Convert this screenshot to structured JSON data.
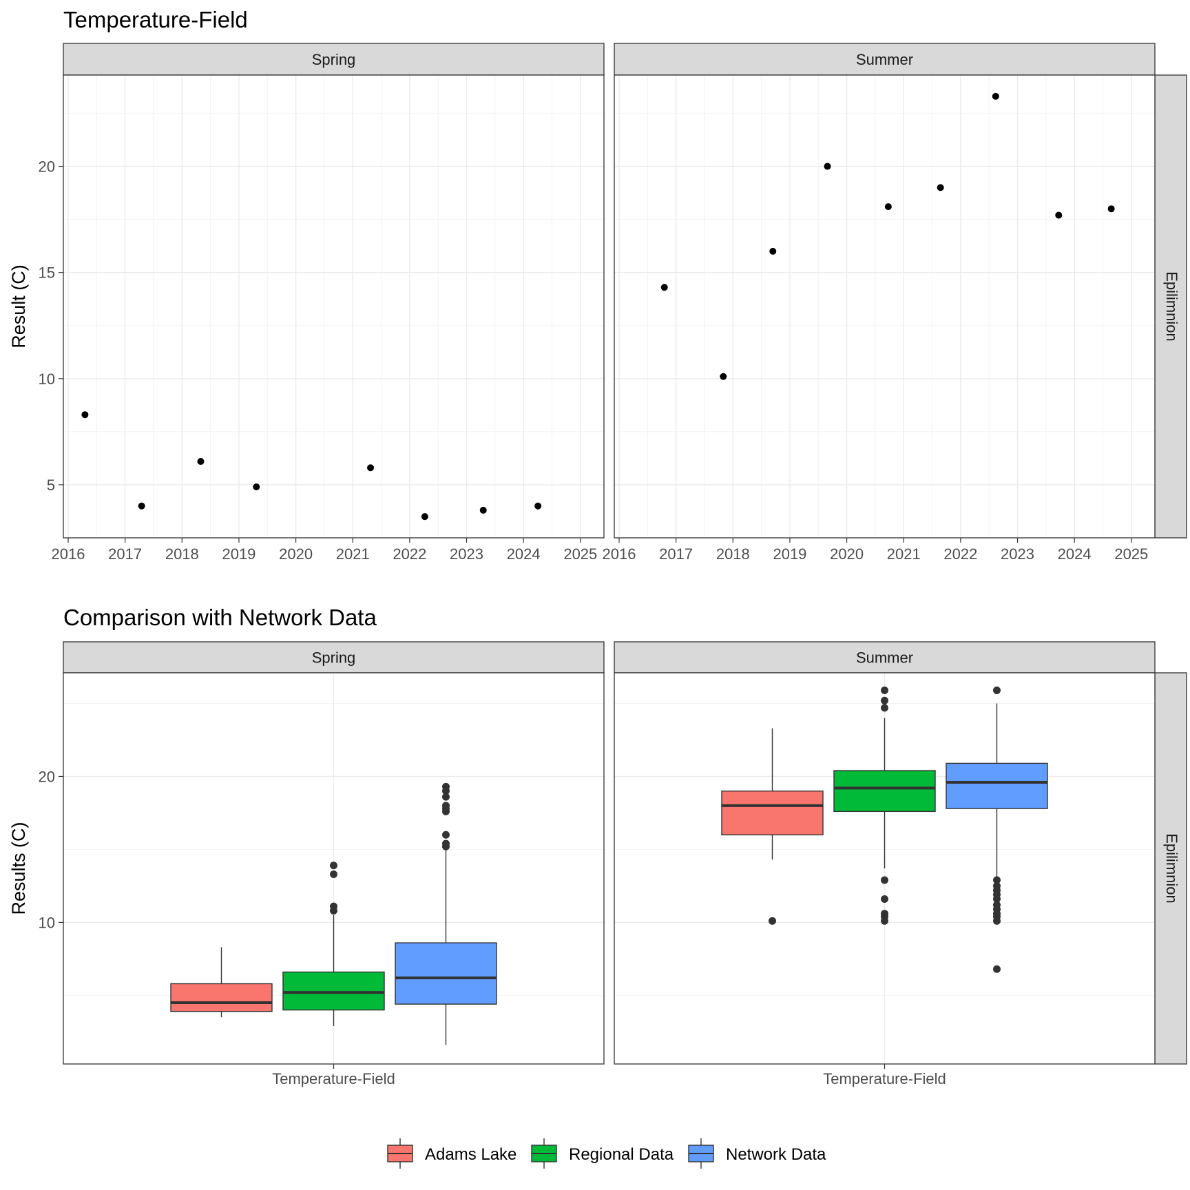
{
  "chart_data": [
    {
      "type": "scatter",
      "title": "Temperature-Field",
      "ylabel": "Result (C)",
      "xlabel": "",
      "ylim": [
        2.5,
        24.3
      ],
      "xlim": [
        "2015-12-01",
        "2025-06-01"
      ],
      "yticks": [
        5,
        10,
        15,
        20
      ],
      "xticks": [
        "2016",
        "2017",
        "2018",
        "2019",
        "2020",
        "2021",
        "2022",
        "2023",
        "2024",
        "2025"
      ],
      "grid": true,
      "row_facet": "Epilimnion",
      "panels": [
        {
          "facet": "Spring",
          "points": [
            {
              "x": "2016-04-18",
              "y": 8.3
            },
            {
              "x": "2017-04-17",
              "y": 4.0
            },
            {
              "x": "2018-05-01",
              "y": 6.1
            },
            {
              "x": "2019-04-23",
              "y": 4.9
            },
            {
              "x": "2021-04-25",
              "y": 5.8
            },
            {
              "x": "2022-04-08",
              "y": 3.5
            },
            {
              "x": "2023-04-18",
              "y": 3.8
            },
            {
              "x": "2024-04-03",
              "y": 4.0
            }
          ]
        },
        {
          "facet": "Summer",
          "points": [
            {
              "x": "2016-10-18",
              "y": 14.3
            },
            {
              "x": "2017-10-31",
              "y": 10.1
            },
            {
              "x": "2018-09-14",
              "y": 16.0
            },
            {
              "x": "2019-08-30",
              "y": 20.0
            },
            {
              "x": "2020-09-24",
              "y": 18.1
            },
            {
              "x": "2021-08-25",
              "y": 19.0
            },
            {
              "x": "2022-08-14",
              "y": 23.3
            },
            {
              "x": "2023-09-22",
              "y": 17.7
            },
            {
              "x": "2024-08-25",
              "y": 18.0
            }
          ]
        }
      ]
    },
    {
      "type": "box",
      "title": "Comparison with Network Data",
      "ylabel": "Results (C)",
      "xlabel": "",
      "ylim": [
        0.3,
        27.1
      ],
      "yticks": [
        10,
        20
      ],
      "categories": [
        "Temperature-Field"
      ],
      "grid": true,
      "row_facet": "Epilimnion",
      "panels": [
        {
          "facet": "Spring",
          "boxes": [
            {
              "series": "Adams Lake",
              "whisker_low": 3.5,
              "q1": 3.9,
              "median": 4.5,
              "q3": 5.8,
              "whisker_high": 8.3,
              "outliers": []
            },
            {
              "series": "Regional Data",
              "whisker_low": 2.9,
              "q1": 4.0,
              "median": 5.2,
              "q3": 6.6,
              "whisker_high": 10.5,
              "outliers": [
                10.8,
                11.1,
                13.3,
                13.9
              ]
            },
            {
              "series": "Network Data",
              "whisker_low": 1.6,
              "q1": 4.4,
              "median": 6.2,
              "q3": 8.6,
              "whisker_high": 15.0,
              "outliers": [
                15.2,
                15.4,
                16.0,
                17.6,
                17.8,
                18.0,
                18.6,
                19.0,
                19.3
              ]
            }
          ]
        },
        {
          "facet": "Summer",
          "boxes": [
            {
              "series": "Adams Lake",
              "whisker_low": 14.3,
              "q1": 16.0,
              "median": 18.0,
              "q3": 19.0,
              "whisker_high": 23.3,
              "outliers": [
                10.1
              ]
            },
            {
              "series": "Regional Data",
              "whisker_low": 13.7,
              "q1": 17.6,
              "median": 19.2,
              "q3": 20.4,
              "whisker_high": 24.0,
              "outliers": [
                10.1,
                10.4,
                10.6,
                11.6,
                12.9,
                24.7,
                25.2,
                25.9
              ]
            },
            {
              "series": "Network Data",
              "whisker_low": 13.1,
              "q1": 17.8,
              "median": 19.6,
              "q3": 20.9,
              "whisker_high": 25.0,
              "outliers": [
                6.8,
                10.1,
                10.4,
                10.6,
                10.9,
                11.2,
                11.6,
                11.9,
                12.2,
                12.5,
                12.9,
                25.9
              ]
            }
          ]
        }
      ]
    }
  ],
  "legend": {
    "position": "bottom",
    "items": [
      {
        "label": "Adams Lake",
        "color": "#F8766D"
      },
      {
        "label": "Regional Data",
        "color": "#00BA38"
      },
      {
        "label": "Network Data",
        "color": "#619CFF"
      }
    ]
  }
}
